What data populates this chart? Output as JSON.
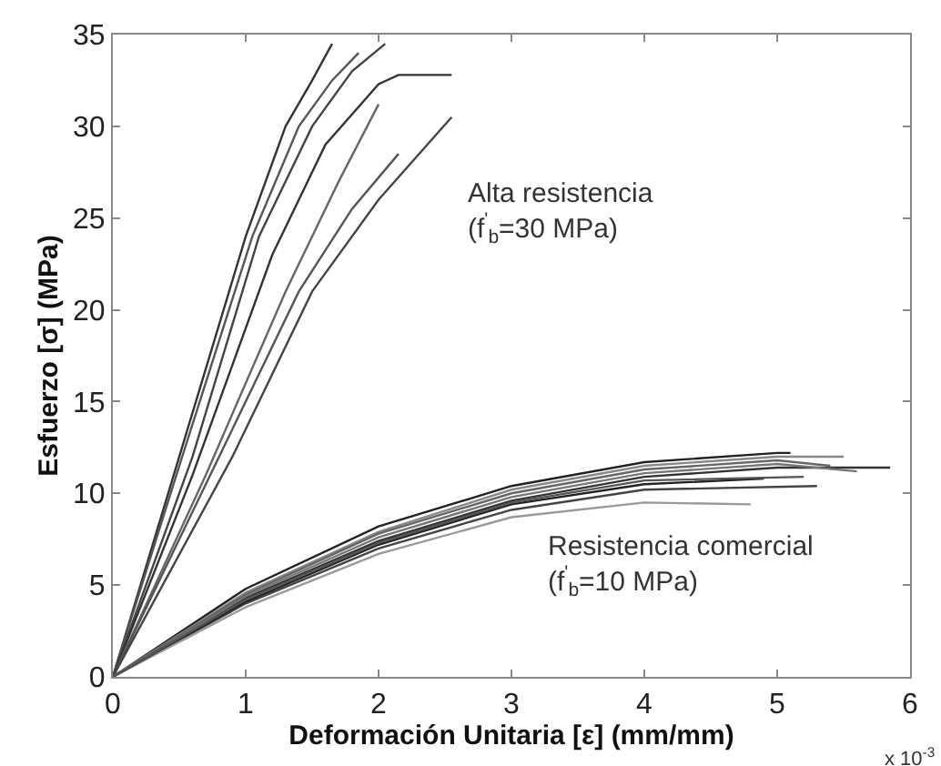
{
  "chart_data": {
    "type": "line",
    "xlabel": "Deformación Unitaria [ε] (mm/mm)",
    "ylabel": "Esfuerzo [σ] (MPa)",
    "xlim": [
      0,
      6
    ],
    "xticks": [
      0,
      1,
      2,
      3,
      4,
      5,
      6
    ],
    "ylim": [
      0,
      35
    ],
    "yticks": [
      0,
      5,
      10,
      15,
      20,
      25,
      30,
      35
    ],
    "marker": "none",
    "line_style": "solid",
    "annotations": [
      "Alta resistencia\n(f$^{'}$$_{b}$=30 MPa)",
      "Resistencia comercial\n(f$^{'}$$_{b}$=10 MPa)",
      "x 10$^{-3}$"
    ],
    "series": [
      {
        "color": "#333333",
        "x": [
          0,
          0.5,
          1.0,
          1.3,
          1.5,
          1.65
        ],
        "values": [
          0,
          12,
          24,
          30,
          32.5,
          34.5
        ]
      },
      {
        "color": "#555555",
        "x": [
          0,
          0.5,
          1.05,
          1.4,
          1.65,
          1.85
        ],
        "values": [
          0,
          11.5,
          24,
          30,
          32.5,
          34
        ]
      },
      {
        "color": "#444444",
        "x": [
          0,
          0.6,
          1.1,
          1.5,
          1.8,
          2.05
        ],
        "values": [
          0,
          12,
          24,
          30,
          33,
          34.5
        ]
      },
      {
        "color": "#333333",
        "x": [
          0,
          0.6,
          1.2,
          1.6,
          2.0,
          2.15,
          2.55
        ],
        "values": [
          0,
          11,
          23,
          29,
          32.3,
          32.8,
          32.8
        ]
      },
      {
        "color": "#666666",
        "x": [
          0,
          0.7,
          1.3,
          1.7,
          2.0
        ],
        "values": [
          0,
          11,
          21,
          27,
          31.2
        ]
      },
      {
        "color": "#555555",
        "x": [
          0,
          0.8,
          1.4,
          1.8,
          2.15
        ],
        "values": [
          0,
          12,
          21,
          25.5,
          28.5
        ]
      },
      {
        "color": "#444444",
        "x": [
          0,
          0.9,
          1.5,
          2.0,
          2.55
        ],
        "values": [
          0,
          12,
          21,
          26,
          30.5
        ]
      },
      {
        "color": "#222222",
        "x": [
          0,
          1,
          2,
          3,
          4,
          5,
          5.1
        ],
        "values": [
          0,
          4.8,
          8.2,
          10.4,
          11.7,
          12.2,
          12.2
        ]
      },
      {
        "color": "#888888",
        "x": [
          0,
          1,
          2,
          3,
          4,
          5,
          5.5
        ],
        "values": [
          0,
          4.6,
          7.9,
          10.2,
          11.5,
          12.0,
          12.0
        ]
      },
      {
        "color": "#333333",
        "x": [
          0,
          1,
          2,
          3,
          4,
          5,
          5.85
        ],
        "values": [
          0,
          4.3,
          7.4,
          9.6,
          10.9,
          11.4,
          11.4
        ]
      },
      {
        "color": "#777777",
        "x": [
          0,
          1,
          2,
          3,
          4,
          5,
          5.6
        ],
        "values": [
          0,
          4.4,
          7.6,
          9.8,
          11.1,
          11.6,
          11.2
        ]
      },
      {
        "color": "#444444",
        "x": [
          0,
          1,
          2,
          3,
          4,
          5.3
        ],
        "values": [
          0,
          4.0,
          7.0,
          9.1,
          10.2,
          10.4
        ]
      },
      {
        "color": "#999999",
        "x": [
          0,
          1,
          2,
          3,
          4,
          4.8
        ],
        "values": [
          0,
          3.8,
          6.7,
          8.7,
          9.5,
          9.4
        ]
      },
      {
        "color": "#222222",
        "x": [
          0,
          1,
          2,
          3,
          4,
          4.9
        ],
        "values": [
          0,
          4.1,
          7.2,
          9.4,
          10.5,
          10.8
        ]
      },
      {
        "color": "#666666",
        "x": [
          0,
          1,
          2,
          3,
          4,
          5,
          5.4
        ],
        "values": [
          0,
          4.5,
          7.8,
          10.0,
          11.3,
          11.8,
          11.5
        ]
      },
      {
        "color": "#555555",
        "x": [
          0,
          1,
          2,
          3,
          4,
          5.2
        ],
        "values": [
          0,
          4.2,
          7.3,
          9.5,
          10.7,
          10.9
        ]
      }
    ]
  }
}
